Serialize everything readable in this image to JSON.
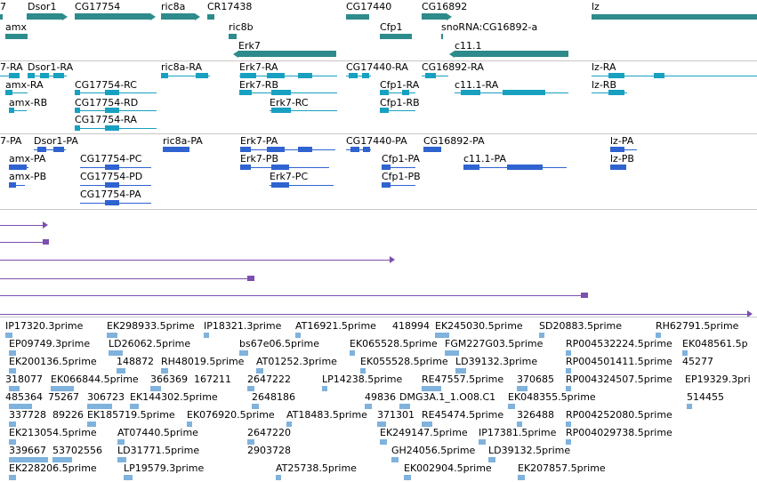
{
  "colors": {
    "gene": "#2e8b8b",
    "rna": "#18a0c0",
    "protein": "#2f63d0",
    "longread": "#7b4fb0",
    "evidence": "#7fb2dc",
    "separator": "#c8c8c8"
  },
  "genes": [
    {
      "label": "7",
      "dir": "none"
    },
    {
      "label": "Dsor1",
      "dir": "right"
    },
    {
      "label": "amx",
      "dir": "none"
    },
    {
      "label": "CG17754",
      "dir": "right"
    },
    {
      "label": "ric8a",
      "dir": "right"
    },
    {
      "label": "CR17438",
      "dir": "none"
    },
    {
      "label": "ric8b",
      "dir": "none"
    },
    {
      "label": "Erk7",
      "dir": "none"
    },
    {
      "label": "CG17440",
      "dir": "none"
    },
    {
      "label": "Cfp1",
      "dir": "none"
    },
    {
      "label": "CG16892",
      "dir": "right"
    },
    {
      "label": "snoRNA:CG16892-a",
      "dir": "none"
    },
    {
      "label": "c11.1",
      "dir": "none"
    },
    {
      "label": "lz",
      "dir": "none"
    }
  ],
  "rna": [
    {
      "label": "7-RA"
    },
    {
      "label": "Dsor1-RA"
    },
    {
      "label": "amx-RA"
    },
    {
      "label": "amx-RB"
    },
    {
      "label": "CG17754-RC"
    },
    {
      "label": "CG17754-RD"
    },
    {
      "label": "CG17754-RA"
    },
    {
      "label": "ric8a-RA"
    },
    {
      "label": "Erk7-RA"
    },
    {
      "label": "Erk7-RB"
    },
    {
      "label": "Erk7-RC"
    },
    {
      "label": "CG17440-RA"
    },
    {
      "label": "CG16892-RA"
    },
    {
      "label": "Cfp1-RA"
    },
    {
      "label": "Cfp1-RB"
    },
    {
      "label": "c11.1-RA"
    },
    {
      "label": "lz-RA"
    },
    {
      "label": "lz-RB"
    }
  ],
  "protein": [
    {
      "label": "7-PA"
    },
    {
      "label": "Dsor1-PA"
    },
    {
      "label": "amx-PA"
    },
    {
      "label": "amx-PB"
    },
    {
      "label": "CG17754-PC"
    },
    {
      "label": "CG17754-PD"
    },
    {
      "label": "CG17754-PA"
    },
    {
      "label": "ric8a-PA"
    },
    {
      "label": "Erk7-PA"
    },
    {
      "label": "Erk7-PB"
    },
    {
      "label": "Erk7-PC"
    },
    {
      "label": "CG17440-PA"
    },
    {
      "label": "CG16892-PA"
    },
    {
      "label": "Cfp1-PA"
    },
    {
      "label": "Cfp1-PB"
    },
    {
      "label": "c11.1-PA"
    },
    {
      "label": "lz-PA"
    },
    {
      "label": "lz-PB"
    }
  ],
  "evidence": [
    "IP17320.3prime",
    "EK298933.5prime",
    "IP18321.3prime",
    "AT16921.5prime",
    "418994",
    "EK245030.5prime",
    "SD20883.5prime",
    "RH62791.5prime",
    "EP09749.3prime",
    "LD26062.5prime",
    "bs67e06.5prime",
    "EK065528.5prime",
    "FGM227G03.5prime",
    "RP004532224.5prime",
    "EK048561.5p",
    "EK200136.5prime",
    "148872",
    "RH48019.5prime",
    "AT01252.3prime",
    "EK055528.5prime",
    "LD39132.3prime",
    "RP004501411.5prime",
    "45277",
    "318077",
    "EK066844.5prime",
    "366369",
    "167211",
    "2647222",
    "LP14238.5prime",
    "RE47557.5prime",
    "370685",
    "RP004324507.5prime",
    "EP19329.3pri",
    "485364",
    "75267",
    "306723",
    "EK144302.5prime",
    "2648186",
    "49836",
    "DMG3A.1_1.O08.C1",
    "EK048355.5prime",
    "514455",
    "337728",
    "89226",
    "EK185719.5prime",
    "EK076920.5prime",
    "AT18483.5prime",
    "371301",
    "RE45474.5prime",
    "326488",
    "RP004252080.5prime",
    "EK213054.5prime",
    "AT07440.5prime",
    "2647220",
    "EK249147.5prime",
    "IP17381.5prime",
    "RP004029738.5prime",
    "339667",
    "53702556",
    "LD31771.5prime",
    "2903728",
    "GH24056.5prime",
    "LD39132.5prime",
    "EK228206.5prime",
    "LP19579.3prime",
    "AT25738.5prime",
    "EK002904.5prime",
    "EK207857.5prime"
  ]
}
